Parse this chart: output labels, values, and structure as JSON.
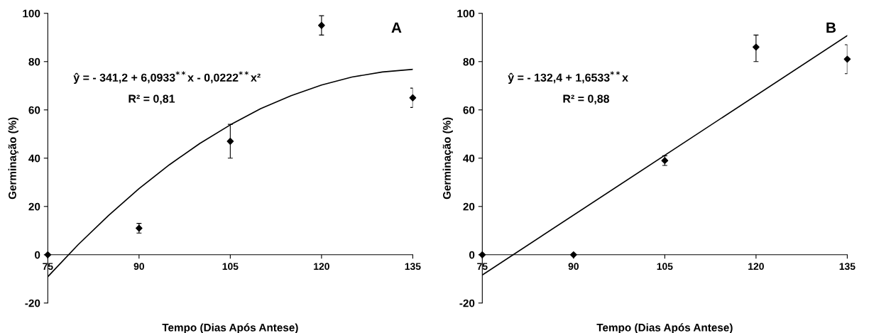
{
  "chart_data": [
    {
      "type": "scatter",
      "xlabel": "Tempo (Dias Após Antese)",
      "ylabel": "Germinação (%)",
      "xlim": [
        75,
        135
      ],
      "xticks": [
        75,
        90,
        105,
        120,
        135
      ],
      "ylim": [
        -20,
        100
      ],
      "yticks": [
        -20,
        0,
        20,
        40,
        60,
        80,
        100
      ],
      "grid": false,
      "legend": false,
      "marker": "diamond",
      "annotations": [
        "A",
        "ŷ = - 341,2 + 6,0933$^{**}$x - 0,0222$^{**}$x²",
        "R² = 0,81"
      ],
      "series": [
        {
          "type": "scatter",
          "color": "#000000",
          "x": [
            75,
            90,
            105,
            120,
            135
          ],
          "values": [
            0,
            11,
            47,
            95,
            65
          ],
          "errors": [
            null,
            2,
            [
              40,
              54
            ],
            4,
            4
          ]
        },
        {
          "type": "line",
          "color": "#000000",
          "marker": "none",
          "line_style": "solid",
          "x": [
            75,
            80,
            85,
            90,
            95,
            100,
            105,
            110,
            115,
            120,
            125,
            130,
            135
          ],
          "values": [
            -9.1,
            4.2,
            16.3,
            27.4,
            37.3,
            46.1,
            53.8,
            60.5,
            65.9,
            70.3,
            73.6,
            75.7,
            76.8
          ]
        }
      ]
    },
    {
      "type": "scatter",
      "xlabel": "Tempo (Dias Após Antese)",
      "ylabel": "Germinação (%)",
      "xlim": [
        75,
        135
      ],
      "xticks": [
        75,
        90,
        105,
        120,
        135
      ],
      "ylim": [
        -20,
        100
      ],
      "yticks": [
        -20,
        0,
        20,
        40,
        60,
        80,
        100
      ],
      "grid": false,
      "legend": false,
      "marker": "diamond",
      "annotations": [
        "B",
        "ŷ = - 132,4 + 1,6533$^{**}$x",
        "R² = 0,88"
      ],
      "series": [
        {
          "type": "scatter",
          "color": "#000000",
          "x": [
            75,
            90,
            105,
            120,
            135
          ],
          "values": [
            0,
            0,
            39,
            86,
            81
          ],
          "errors": [
            null,
            null,
            2,
            [
              80,
              91
            ],
            [
              75,
              87
            ]
          ]
        },
        {
          "type": "line",
          "color": "#000000",
          "marker": "none",
          "line_style": "solid",
          "x": [
            75,
            135
          ],
          "values": [
            -8.4,
            90.8
          ]
        }
      ]
    }
  ]
}
